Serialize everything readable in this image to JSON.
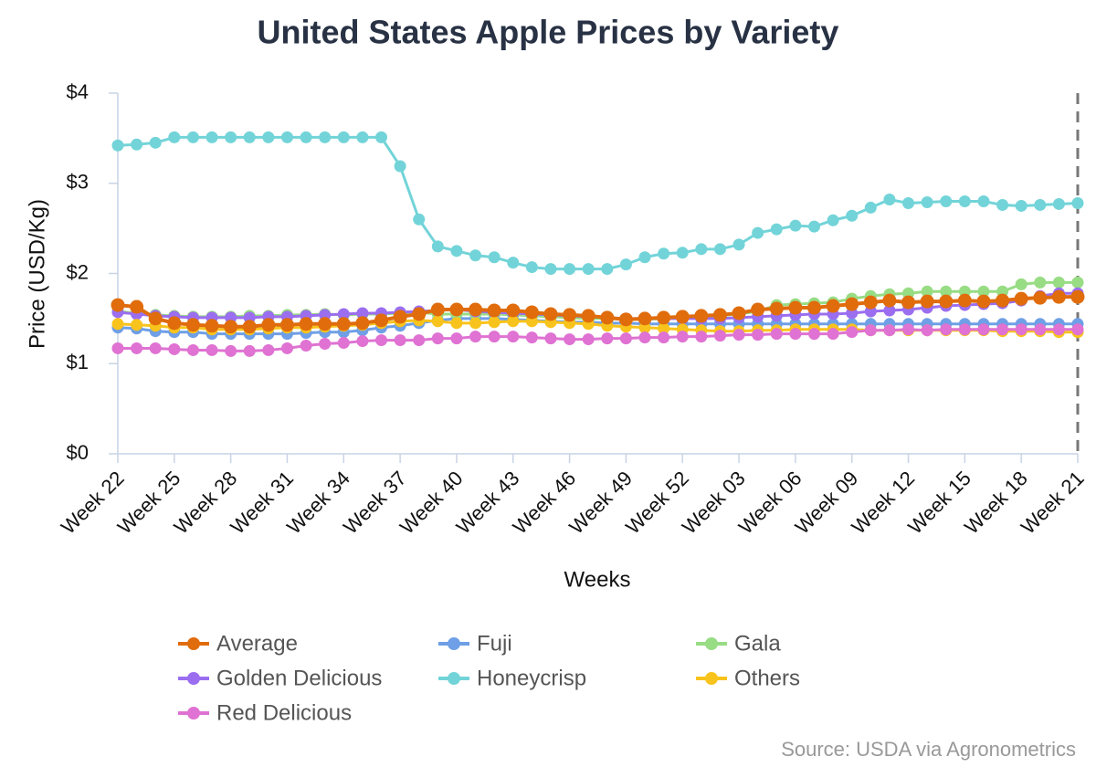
{
  "chart_data": {
    "type": "line",
    "title": "United States Apple Prices by Variety",
    "x_label": "Weeks",
    "y_label": "Price (USD/Kg)",
    "source": "Source: USDA via Agronometrics",
    "categories": [
      "Week 22",
      null,
      null,
      "Week 25",
      null,
      null,
      "Week 28",
      null,
      null,
      "Week 31",
      null,
      null,
      "Week 34",
      null,
      null,
      "Week 37",
      null,
      null,
      "Week 40",
      null,
      null,
      "Week 43",
      null,
      null,
      "Week 46",
      null,
      null,
      "Week 49",
      null,
      null,
      "Week 52",
      null,
      null,
      "Week 03",
      null,
      null,
      "Week 06",
      null,
      null,
      "Week 09",
      null,
      null,
      "Week 12",
      null,
      null,
      "Week 15",
      null,
      null,
      "Week 18",
      null,
      null,
      "Week 21"
    ],
    "ylim": [
      0,
      4
    ],
    "yticks": [
      {
        "value": 0,
        "label": "$0"
      },
      {
        "value": 1,
        "label": "$1"
      },
      {
        "value": 2,
        "label": "$2"
      },
      {
        "value": 3,
        "label": "$3"
      },
      {
        "value": 4,
        "label": "$4"
      }
    ],
    "grid": false,
    "legend": "bottom",
    "series": [
      {
        "name": "Average",
        "color": "#e06c0c",
        "values": [
          1.65,
          1.63,
          1.5,
          1.45,
          1.43,
          1.42,
          1.41,
          1.41,
          1.43,
          1.43,
          1.44,
          1.44,
          1.44,
          1.45,
          1.48,
          1.52,
          1.55,
          1.6,
          1.6,
          1.6,
          1.59,
          1.59,
          1.57,
          1.55,
          1.54,
          1.53,
          1.51,
          1.49,
          1.5,
          1.51,
          1.52,
          1.53,
          1.54,
          1.56,
          1.6,
          1.61,
          1.62,
          1.62,
          1.64,
          1.66,
          1.68,
          1.7,
          1.68,
          1.69,
          1.69,
          1.7,
          1.69,
          1.7,
          1.72,
          1.73,
          1.74,
          1.74
        ]
      },
      {
        "name": "Fuji",
        "color": "#6f9fe6",
        "values": [
          1.4,
          1.39,
          1.36,
          1.35,
          1.35,
          1.33,
          1.33,
          1.33,
          1.33,
          1.33,
          1.34,
          1.35,
          1.35,
          1.37,
          1.4,
          1.42,
          1.45,
          1.48,
          1.5,
          1.5,
          1.5,
          1.49,
          1.48,
          1.47,
          1.46,
          1.46,
          1.45,
          1.45,
          1.44,
          1.44,
          1.44,
          1.44,
          1.44,
          1.44,
          1.44,
          1.44,
          1.44,
          1.44,
          1.44,
          1.44,
          1.44,
          1.44,
          1.44,
          1.44,
          1.44,
          1.44,
          1.44,
          1.44,
          1.44,
          1.44,
          1.44,
          1.44
        ]
      },
      {
        "name": "Gala",
        "color": "#98dc84",
        "values": [
          1.58,
          1.56,
          1.54,
          1.53,
          1.52,
          1.52,
          1.52,
          1.53,
          1.53,
          1.54,
          1.54,
          1.55,
          1.54,
          1.55,
          1.55,
          1.56,
          1.57,
          1.55,
          1.55,
          1.55,
          1.55,
          1.54,
          1.53,
          1.52,
          1.51,
          1.5,
          1.5,
          1.49,
          1.49,
          1.5,
          1.51,
          1.52,
          1.53,
          1.55,
          1.58,
          1.65,
          1.66,
          1.67,
          1.68,
          1.72,
          1.75,
          1.77,
          1.78,
          1.8,
          1.8,
          1.8,
          1.8,
          1.8,
          1.88,
          1.9,
          1.9,
          1.9
        ]
      },
      {
        "name": "Golden Delicious",
        "color": "#9b6ef0",
        "values": [
          1.57,
          1.55,
          1.53,
          1.52,
          1.51,
          1.51,
          1.51,
          1.51,
          1.52,
          1.52,
          1.53,
          1.54,
          1.55,
          1.56,
          1.56,
          1.57,
          1.58,
          1.59,
          1.6,
          1.58,
          1.57,
          1.56,
          1.55,
          1.54,
          1.53,
          1.52,
          1.51,
          1.5,
          1.5,
          1.5,
          1.5,
          1.5,
          1.5,
          1.51,
          1.52,
          1.53,
          1.54,
          1.55,
          1.55,
          1.56,
          1.58,
          1.59,
          1.6,
          1.62,
          1.64,
          1.65,
          1.66,
          1.67,
          1.7,
          1.75,
          1.78,
          1.78
        ]
      },
      {
        "name": "Honeycrisp",
        "color": "#72d4d8",
        "values": [
          3.42,
          3.43,
          3.45,
          3.51,
          3.51,
          3.51,
          3.51,
          3.51,
          3.51,
          3.51,
          3.51,
          3.51,
          3.51,
          3.51,
          3.51,
          3.19,
          2.6,
          2.3,
          2.25,
          2.2,
          2.18,
          2.12,
          2.07,
          2.05,
          2.05,
          2.05,
          2.05,
          2.1,
          2.18,
          2.22,
          2.23,
          2.27,
          2.27,
          2.32,
          2.45,
          2.49,
          2.53,
          2.52,
          2.59,
          2.64,
          2.73,
          2.82,
          2.78,
          2.79,
          2.8,
          2.8,
          2.8,
          2.76,
          2.75,
          2.76,
          2.77,
          2.78
        ]
      },
      {
        "name": "Others",
        "color": "#f8c31c",
        "values": [
          1.44,
          1.43,
          1.42,
          1.4,
          1.4,
          1.38,
          1.38,
          1.38,
          1.39,
          1.4,
          1.4,
          1.41,
          1.42,
          1.43,
          1.45,
          1.47,
          1.48,
          1.47,
          1.45,
          1.45,
          1.46,
          1.47,
          1.47,
          1.46,
          1.45,
          1.44,
          1.42,
          1.41,
          1.4,
          1.39,
          1.38,
          1.37,
          1.36,
          1.36,
          1.37,
          1.37,
          1.38,
          1.38,
          1.38,
          1.38,
          1.37,
          1.37,
          1.37,
          1.37,
          1.37,
          1.37,
          1.37,
          1.36,
          1.36,
          1.36,
          1.35,
          1.35
        ]
      },
      {
        "name": "Red Delicious",
        "color": "#df72d2",
        "values": [
          1.17,
          1.17,
          1.17,
          1.16,
          1.15,
          1.15,
          1.14,
          1.14,
          1.15,
          1.17,
          1.2,
          1.22,
          1.23,
          1.25,
          1.26,
          1.26,
          1.26,
          1.28,
          1.28,
          1.3,
          1.3,
          1.3,
          1.29,
          1.28,
          1.27,
          1.27,
          1.28,
          1.28,
          1.29,
          1.29,
          1.3,
          1.3,
          1.31,
          1.32,
          1.32,
          1.33,
          1.33,
          1.33,
          1.33,
          1.35,
          1.37,
          1.37,
          1.38,
          1.37,
          1.38,
          1.38,
          1.38,
          1.38,
          1.38,
          1.38,
          1.38,
          1.38
        ]
      }
    ]
  }
}
